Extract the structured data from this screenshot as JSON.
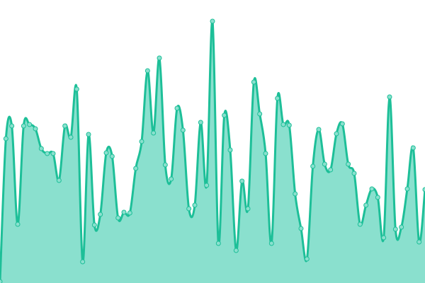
{
  "chart_data": {
    "type": "area",
    "title": "",
    "xlabel": "",
    "ylabel": "",
    "ylim": [
      0,
      400
    ],
    "grid": false,
    "legend": "none",
    "curve": "smooth",
    "colors": {
      "line": "#1dbf98",
      "fill": "#8ae0ce",
      "marker_fill": "#8ae0ce",
      "marker_stroke": "#1dbf98"
    },
    "values": [
      2,
      204,
      222,
      83,
      222,
      224,
      218,
      190,
      183,
      183,
      145,
      222,
      206,
      274,
      30,
      210,
      82,
      97,
      184,
      179,
      92,
      100,
      99,
      162,
      200,
      300,
      212,
      318,
      167,
      147,
      247,
      216,
      105,
      110,
      227,
      138,
      370,
      56,
      237,
      188,
      46,
      144,
      105,
      284,
      239,
      183,
      56,
      261,
      224,
      223,
      126,
      77,
      34,
      165,
      217,
      168,
      160,
      211,
      225,
      168,
      155,
      83,
      110,
      133,
      121,
      64,
      263,
      76,
      79,
      133,
      191,
      58,
      132
    ]
  }
}
